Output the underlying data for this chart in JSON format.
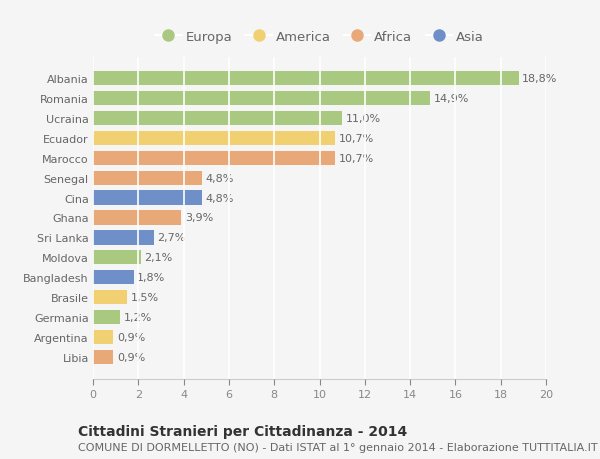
{
  "countries": [
    "Albania",
    "Romania",
    "Ucraina",
    "Ecuador",
    "Marocco",
    "Senegal",
    "Cina",
    "Ghana",
    "Sri Lanka",
    "Moldova",
    "Bangladesh",
    "Brasile",
    "Germania",
    "Argentina",
    "Libia"
  ],
  "values": [
    18.8,
    14.9,
    11.0,
    10.7,
    10.7,
    4.8,
    4.8,
    3.9,
    2.7,
    2.1,
    1.8,
    1.5,
    1.2,
    0.9,
    0.9
  ],
  "labels": [
    "18,8%",
    "14,9%",
    "11,0%",
    "10,7%",
    "10,7%",
    "4,8%",
    "4,8%",
    "3,9%",
    "2,7%",
    "2,1%",
    "1,8%",
    "1,5%",
    "1,2%",
    "0,9%",
    "0,9%"
  ],
  "continents": [
    "Europa",
    "Europa",
    "Europa",
    "America",
    "Africa",
    "Africa",
    "Asia",
    "Africa",
    "Asia",
    "Europa",
    "Asia",
    "America",
    "Europa",
    "America",
    "Africa"
  ],
  "colors": {
    "Europa": "#a8c97f",
    "America": "#f0d070",
    "Africa": "#e8a878",
    "Asia": "#6e8fc8"
  },
  "legend_order": [
    "Europa",
    "America",
    "Africa",
    "Asia"
  ],
  "title": "Cittadini Stranieri per Cittadinanza - 2014",
  "subtitle": "COMUNE DI DORMELLETTO (NO) - Dati ISTAT al 1° gennaio 2014 - Elaborazione TUTTITALIA.IT",
  "xlim": [
    0,
    20
  ],
  "xticks": [
    0,
    2,
    4,
    6,
    8,
    10,
    12,
    14,
    16,
    18,
    20
  ],
  "background_color": "#f5f5f5",
  "grid_color": "#ffffff",
  "bar_height": 0.72,
  "title_fontsize": 10,
  "subtitle_fontsize": 8,
  "label_fontsize": 8,
  "tick_fontsize": 8,
  "legend_fontsize": 9.5
}
